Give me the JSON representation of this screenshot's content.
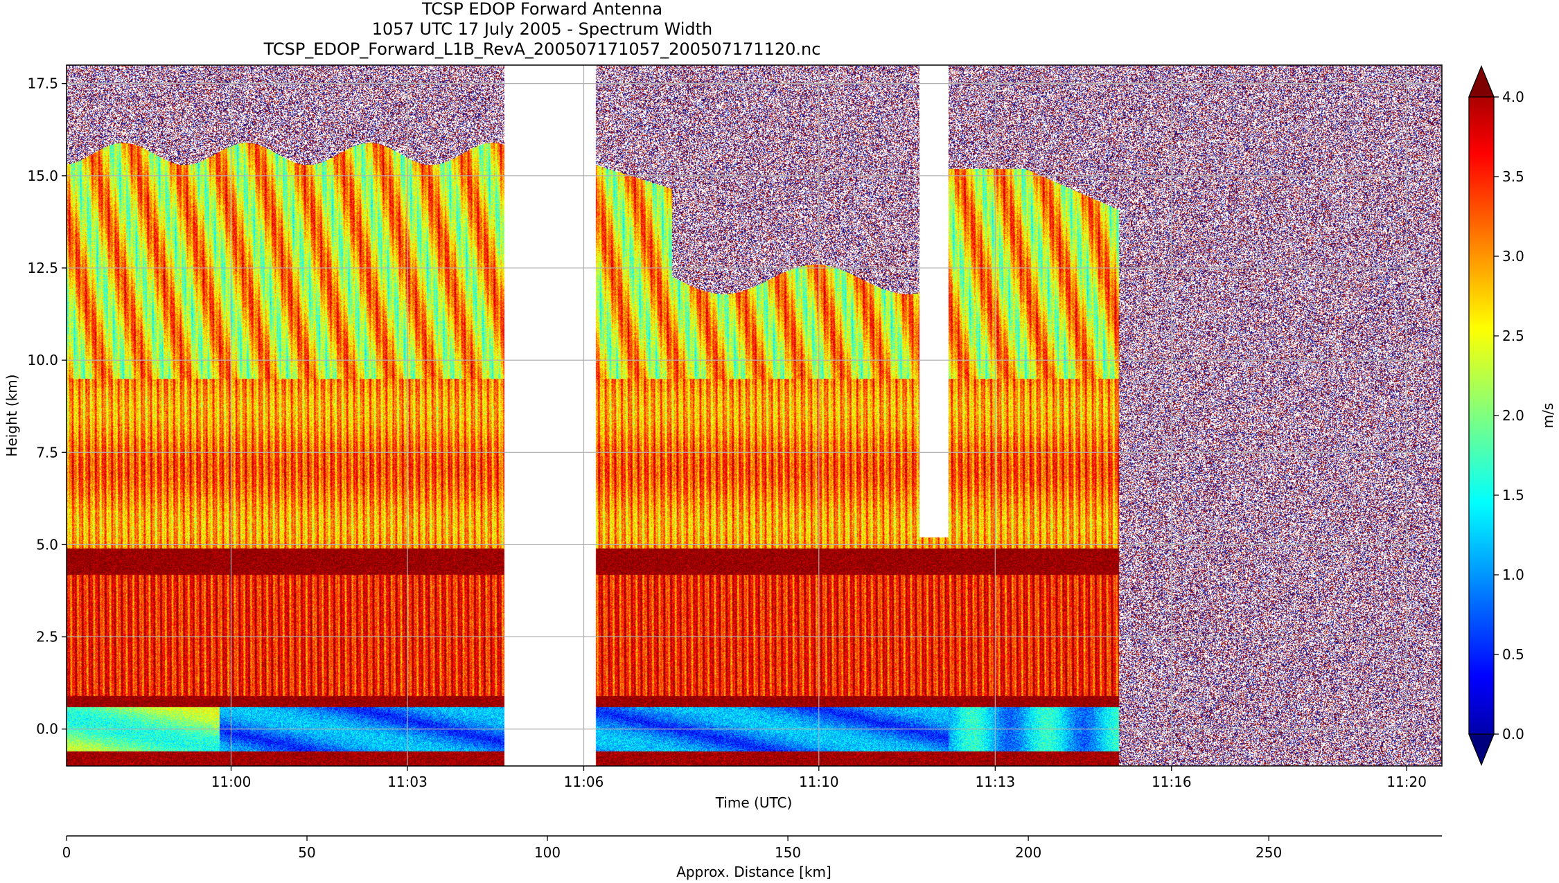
{
  "chart_data": {
    "type": "heatmap",
    "title": [
      "TCSP EDOP Forward Antenna",
      "1057 UTC 17 July 2005 - Spectrum Width",
      "TCSP_EDOP_Forward_L1B_RevA_200507171057_200507171120.nc"
    ],
    "xlabel": "Time (UTC)",
    "ylabel": "Height (km)",
    "xlim_minutes": [
      657.2,
      680.6
    ],
    "ylim": [
      -1.0,
      18.0
    ],
    "x_ticks": [
      {
        "value": 660,
        "label": "11:00"
      },
      {
        "value": 663,
        "label": "11:03"
      },
      {
        "value": 666,
        "label": "11:06"
      },
      {
        "value": 670,
        "label": "11:10"
      },
      {
        "value": 673,
        "label": "11:13"
      },
      {
        "value": 676,
        "label": "11:16"
      },
      {
        "value": 680,
        "label": "11:20"
      }
    ],
    "y_ticks": [
      0.0,
      2.5,
      5.0,
      7.5,
      10.0,
      12.5,
      15.0,
      17.5
    ],
    "grid": true,
    "secondary_axis": {
      "label": "Approx. Distance [km]",
      "ticks": [
        0,
        50,
        100,
        150,
        200,
        250
      ],
      "range": [
        0,
        286
      ]
    },
    "colorbar": {
      "label": "m/s",
      "min": 0.0,
      "max": 4.0,
      "ticks": [
        0.0,
        0.5,
        1.0,
        1.5,
        2.0,
        2.5,
        3.0,
        3.5,
        4.0
      ],
      "extend": "both",
      "colormap": "jet",
      "stops": [
        "#00007f",
        "#0000ff",
        "#007fff",
        "#00ffff",
        "#7fff7f",
        "#ffff00",
        "#ff7f00",
        "#ff0000",
        "#7f0000"
      ]
    },
    "data_gaps_minutes": [
      [
        664.65,
        666.2
      ],
      [
        671.7,
        672.2
      ]
    ],
    "noise_region_start_minutes": 675.1
  }
}
